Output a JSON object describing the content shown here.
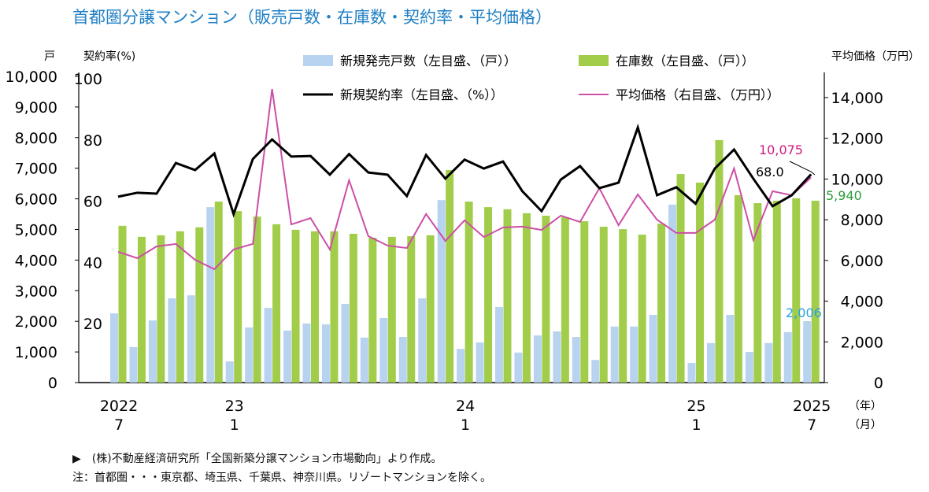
{
  "title": "首都圏分譲マンション（販売戸数・在庫数・契約率・平均価格）",
  "notes": [
    "▶　(株)不動産経済研究所「全国新築分譲マンション市場動向」より作成。",
    "注：首都圏・・・東京都、埼玉県、千葉県、神奈川県。リゾートマンションを除く。"
  ],
  "colors": {
    "title": "#1f7fc4",
    "supply": "#b8d3ef",
    "inventory": "#a2cd4a",
    "rate": "#000000",
    "price": "#cc4fa6",
    "price_label": "#d2197f",
    "inventory_label": "#2a9d3a",
    "supply_label": "#29a3dc"
  },
  "chart_data": {
    "type": "bar+line",
    "title": "首都圏分譲マンション（販売戸数・在庫数・契約率・平均価格）",
    "left_axis": {
      "unit_label": "戸",
      "ylim": [
        0,
        10000
      ],
      "ticks": [
        "0",
        "1,000",
        "2,000",
        "3,000",
        "4,000",
        "5,000",
        "6,000",
        "7,000",
        "8,000",
        "9,000",
        "10,000"
      ]
    },
    "rate_axis": {
      "unit_label": "契約率(%)",
      "ylim": [
        0,
        100
      ],
      "ticks": [
        "20",
        "40",
        "60",
        "80",
        "100"
      ]
    },
    "right_axis": {
      "unit_label": "平均価格（万円）",
      "ylim": [
        0,
        15000
      ],
      "ticks": [
        "0",
        "2,000",
        "4,000",
        "6,000",
        "8,000",
        "10,000",
        "12,000",
        "14,000"
      ]
    },
    "x_ticks": [
      {
        "month_index": 0,
        "year": "2022",
        "month": "7"
      },
      {
        "month_index": 6,
        "year": "23",
        "month": "1"
      },
      {
        "month_index": 18,
        "year": "24",
        "month": "1"
      },
      {
        "month_index": 30,
        "year": "25",
        "month": "1"
      },
      {
        "month_index": 36,
        "year": "2025",
        "month": "7"
      }
    ],
    "x_unit_year": "（年）",
    "x_unit_month": "（月）",
    "x_start": "2022-07",
    "x_end": "2025-07",
    "series": [
      {
        "name": "新規発売戸数（左目盛、（戸））",
        "type": "bar",
        "axis": "left",
        "values": [
          2260,
          1160,
          2030,
          2750,
          2850,
          5730,
          690,
          1800,
          2440,
          1700,
          1930,
          1900,
          2570,
          1470,
          2110,
          1490,
          2750,
          5960,
          1100,
          1310,
          2470,
          980,
          1540,
          1670,
          1490,
          740,
          1830,
          1830,
          2210,
          5810,
          640,
          1290,
          2210,
          1000,
          1290,
          1650,
          2006
        ]
      },
      {
        "name": "在庫数（左目盛、（戸））",
        "type": "bar",
        "axis": "left",
        "values": [
          5120,
          4760,
          4810,
          4940,
          5070,
          5910,
          5600,
          5420,
          5170,
          4990,
          4940,
          4940,
          4860,
          4730,
          4760,
          4780,
          4810,
          6940,
          5910,
          5730,
          5660,
          5530,
          5450,
          5400,
          5270,
          5090,
          5010,
          4830,
          5190,
          6810,
          6530,
          7920,
          6120,
          5860,
          5940,
          6020,
          5940
        ]
      },
      {
        "name": "新規契約率（左目盛、（%））",
        "type": "line",
        "axis": "rate",
        "values": [
          60.7,
          62.0,
          61.7,
          71.7,
          69.4,
          74.8,
          55.0,
          73.0,
          79.4,
          73.8,
          74.0,
          67.9,
          74.6,
          68.6,
          67.9,
          60.9,
          74.3,
          66.6,
          72.8,
          69.9,
          72.2,
          62.5,
          56.0,
          66.3,
          70.7,
          63.5,
          65.3,
          83.3,
          61.2,
          63.8,
          58.4,
          69.9,
          76.1,
          66.6,
          57.6,
          61.2,
          68.0
        ]
      },
      {
        "name": "平均価格（右目盛、（万円））",
        "type": "line",
        "axis": "right",
        "values": [
          6420,
          6110,
          6690,
          6810,
          6030,
          5570,
          6540,
          6810,
          14420,
          7770,
          8080,
          6540,
          9940,
          7190,
          6730,
          6610,
          8280,
          6960,
          7970,
          7150,
          7620,
          7660,
          7500,
          8200,
          7890,
          9550,
          7730,
          9240,
          8000,
          7350,
          7350,
          8000,
          10520,
          7000,
          9400,
          9200,
          10075
        ]
      }
    ],
    "annotations": {
      "price_last": "10,075",
      "rate_last": "68.0",
      "inventory_last": "5,940",
      "supply_last": "2,006"
    },
    "legend_placement": "top",
    "grid": false
  }
}
